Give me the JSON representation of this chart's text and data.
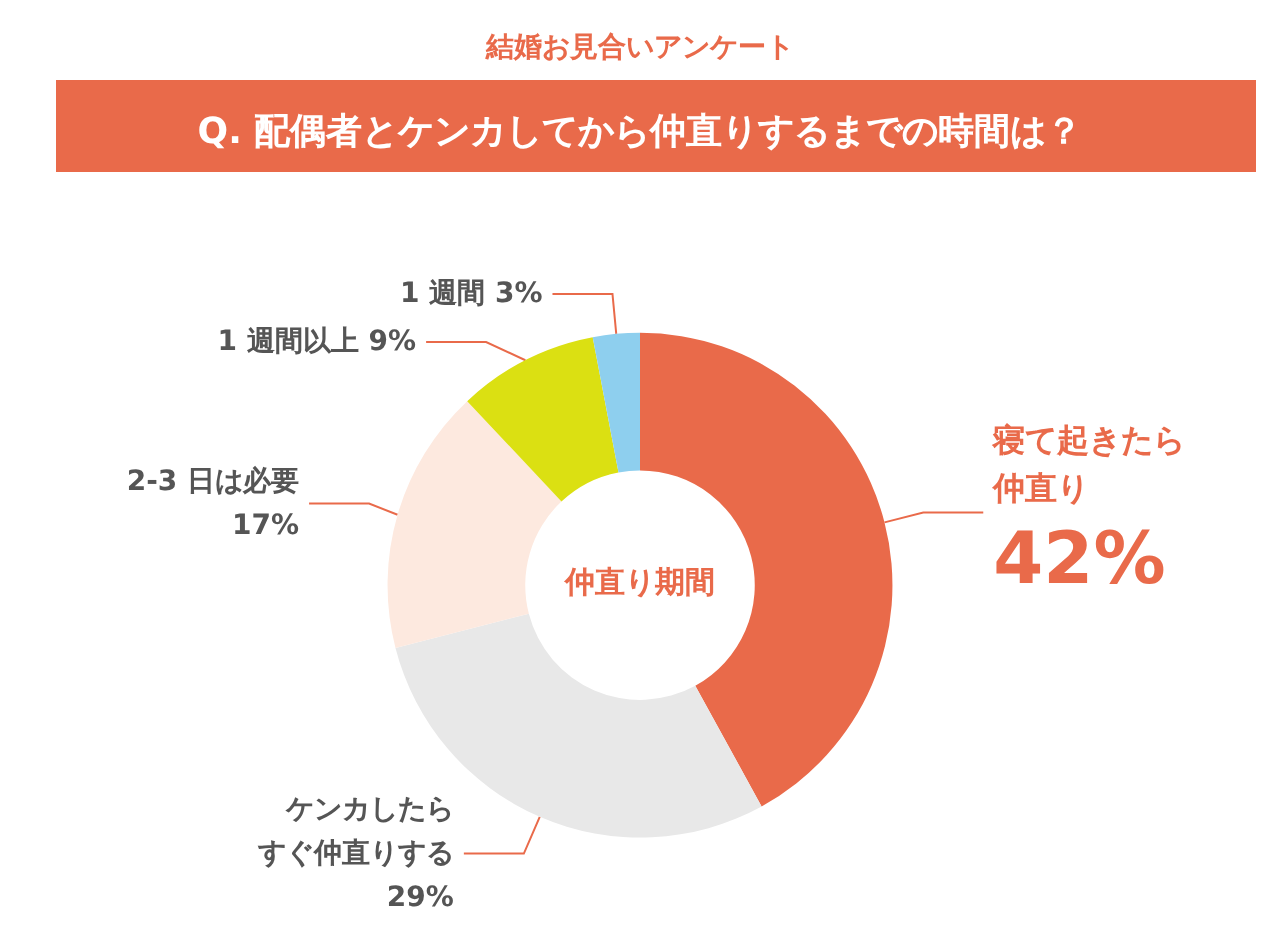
{
  "chart_data": {
    "type": "donut",
    "title": "Q. 配偶者とケンカしてから仲直りするまでの時間は？",
    "subtitle": "結婚お見合いアンケート",
    "categories": [
      "寝て起きたら仲直り",
      "ケンカしたらすぐ仲直りする",
      "2-3 日は必要",
      "1 週間以上",
      "1 週間"
    ],
    "value_labels": [
      "42%",
      "29%",
      "17%",
      "9%",
      "3%"
    ],
    "values": [
      42,
      29,
      17,
      9,
      3
    ],
    "colors": [
      "#e96a4a",
      "#e8e8e8",
      "#fde9df",
      "#dbe012",
      "#8ecfee"
    ],
    "annotations": [
      "仲直り期間"
    ],
    "legend": false
  }
}
